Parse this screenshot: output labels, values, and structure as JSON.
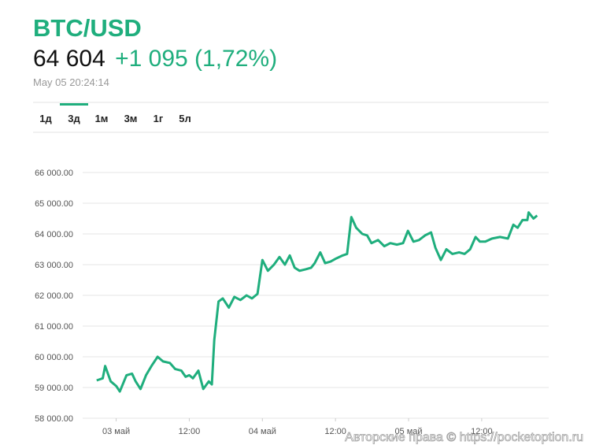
{
  "header": {
    "title": "BTC/USD",
    "price": "64 604",
    "change": "+1 095 (1,72%)",
    "timestamp": "May 05 20:24:14"
  },
  "tabs": {
    "items": [
      "1д",
      "3д",
      "1м",
      "3м",
      "1г",
      "5л"
    ],
    "active": 1
  },
  "watermark": "Авторские права © https://pocketoption.ru",
  "chart_data": {
    "type": "line",
    "x": [
      -3.2,
      -2.2,
      -1.8,
      -0.9,
      0,
      0.6,
      1.7,
      2.6,
      3.2,
      4.0,
      4.9,
      5.8,
      6.8,
      7.7,
      8.8,
      9.7,
      10.7,
      11.4,
      12.0,
      12.6,
      13.5,
      14.3,
      15.2,
      15.7,
      16.1,
      16.8,
      17.5,
      18.5,
      19.4,
      20.4,
      21.4,
      22.3,
      23.2,
      24.0,
      24.9,
      25.9,
      26.8,
      27.7,
      28.5,
      29.3,
      30.1,
      31.1,
      32.0,
      32.6,
      33.5,
      34.3,
      35.2,
      36.1,
      37.2,
      37.9,
      38.6,
      39.4,
      40.4,
      41.2,
      41.9,
      43.0,
      44.0,
      45.0,
      46.1,
      47.1,
      47.9,
      48.8,
      49.7,
      50.7,
      51.7,
      52.4,
      53.3,
      54.2,
      55.2,
      56.3,
      57.2,
      58.1,
      59.0,
      59.7,
      60.6,
      61.7,
      63.0,
      64.3,
      65.2,
      65.9,
      66.7,
      67.5,
      67.7,
      68.5,
      69.1
    ],
    "series": [
      {
        "color": "#1fae7d",
        "values": [
          59230,
          59300,
          59700,
          59200,
          59050,
          58870,
          59400,
          59450,
          59200,
          58950,
          59400,
          59700,
          60000,
          59850,
          59800,
          59600,
          59550,
          59350,
          59400,
          59300,
          59550,
          58950,
          59200,
          59100,
          60550,
          61800,
          61900,
          61600,
          61950,
          61850,
          62000,
          61900,
          62050,
          63150,
          62800,
          63000,
          63250,
          63000,
          63300,
          62900,
          62800,
          62850,
          62900,
          63050,
          63400,
          63050,
          63100,
          63200,
          63300,
          63350,
          64550,
          64200,
          64000,
          63950,
          63700,
          63800,
          63600,
          63700,
          63650,
          63700,
          64100,
          63750,
          63800,
          63950,
          64050,
          63550,
          63150,
          63500,
          63350,
          63400,
          63350,
          63500,
          63900,
          63750,
          63750,
          63850,
          63900,
          63850,
          64300,
          64200,
          64450,
          64450,
          64700,
          64500,
          64600
        ]
      }
    ],
    "xlim": [
      -5.5,
      71
    ],
    "xticks": [
      {
        "value": 0,
        "label": "03 май"
      },
      {
        "value": 12,
        "label": "12:00"
      },
      {
        "value": 24,
        "label": "04 май"
      },
      {
        "value": 36,
        "label": "12:00"
      },
      {
        "value": 48,
        "label": "05 май"
      },
      {
        "value": 60,
        "label": "12:00"
      }
    ],
    "ylim": [
      58000,
      66000
    ],
    "yticks": [
      {
        "value": 58000,
        "label": "58 000.00"
      },
      {
        "value": 59000,
        "label": "59 000.00"
      },
      {
        "value": 60000,
        "label": "60 000.00"
      },
      {
        "value": 61000,
        "label": "61 000.00"
      },
      {
        "value": 62000,
        "label": "62 000.00"
      },
      {
        "value": 63000,
        "label": "63 000.00"
      },
      {
        "value": 64000,
        "label": "64 000.00"
      },
      {
        "value": 65000,
        "label": "65 000.00"
      },
      {
        "value": 66000,
        "label": "66 000.00"
      }
    ],
    "grid": true
  }
}
